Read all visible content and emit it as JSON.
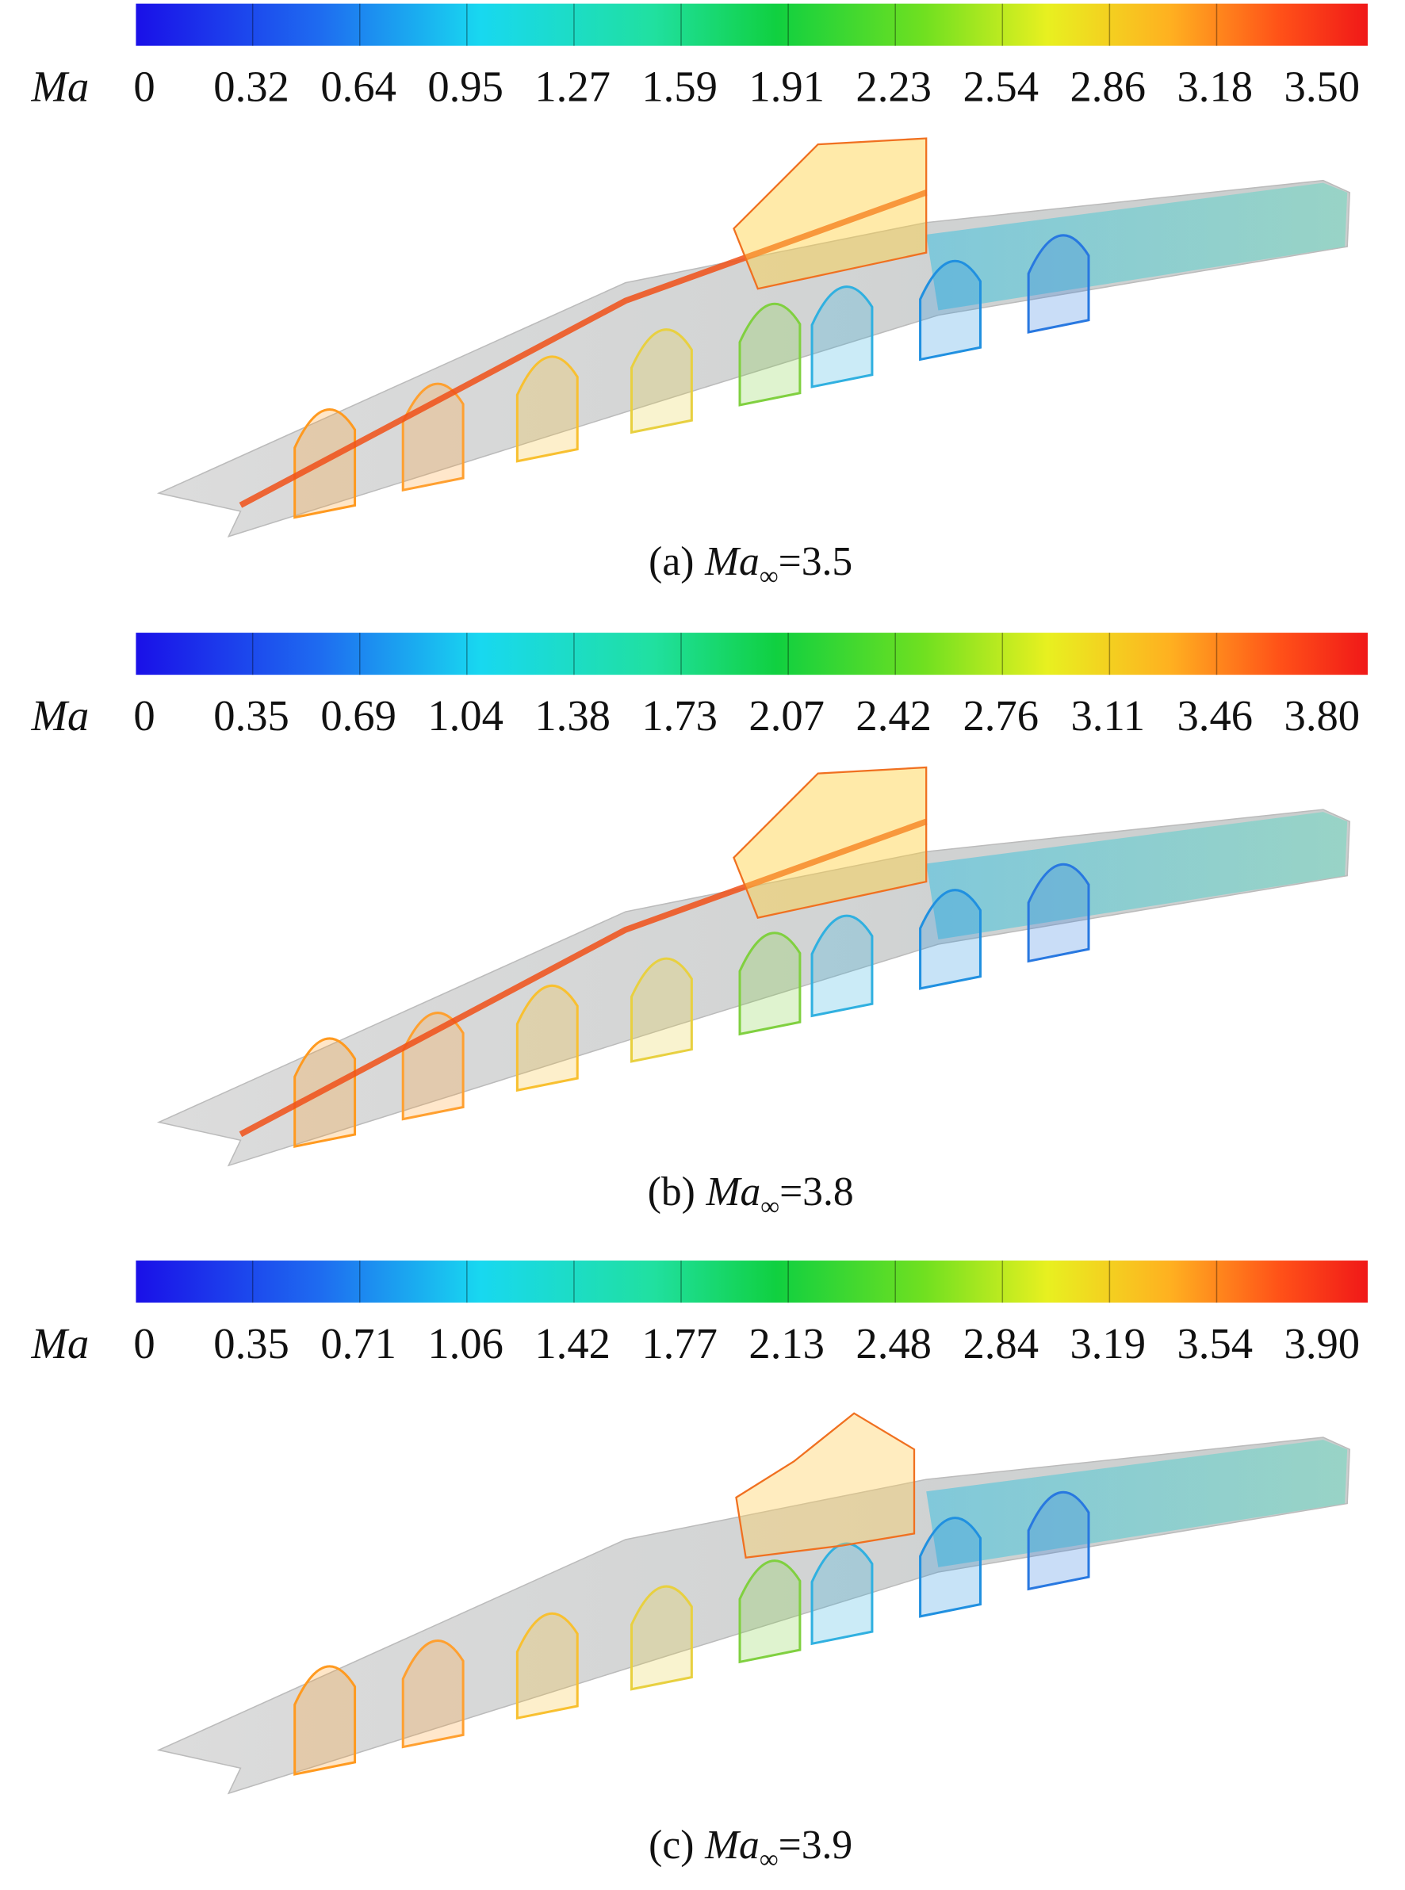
{
  "panels": [
    {
      "colorbar": {
        "label": "Ma",
        "ticks": [
          "0",
          "0.32",
          "0.64",
          "0.95",
          "1.27",
          "1.59",
          "1.91",
          "2.23",
          "2.54",
          "2.86",
          "3.18",
          "3.50"
        ]
      },
      "caption": {
        "label": "(a)",
        "variable": "Ma",
        "subscript": "∞",
        "value": "=3.5"
      }
    },
    {
      "colorbar": {
        "label": "Ma",
        "ticks": [
          "0",
          "0.35",
          "0.69",
          "1.04",
          "1.38",
          "1.73",
          "2.07",
          "2.42",
          "2.76",
          "3.11",
          "3.46",
          "3.80"
        ]
      },
      "caption": {
        "label": "(b)",
        "variable": "Ma",
        "subscript": "∞",
        "value": "=3.8"
      }
    },
    {
      "colorbar": {
        "label": "Ma",
        "ticks": [
          "0",
          "0.35",
          "0.71",
          "1.06",
          "1.42",
          "1.77",
          "2.13",
          "2.48",
          "2.84",
          "3.19",
          "3.54",
          "3.90"
        ]
      },
      "caption": {
        "label": "(c)",
        "variable": "Ma",
        "subscript": "∞",
        "value": "=3.9"
      }
    }
  ]
}
